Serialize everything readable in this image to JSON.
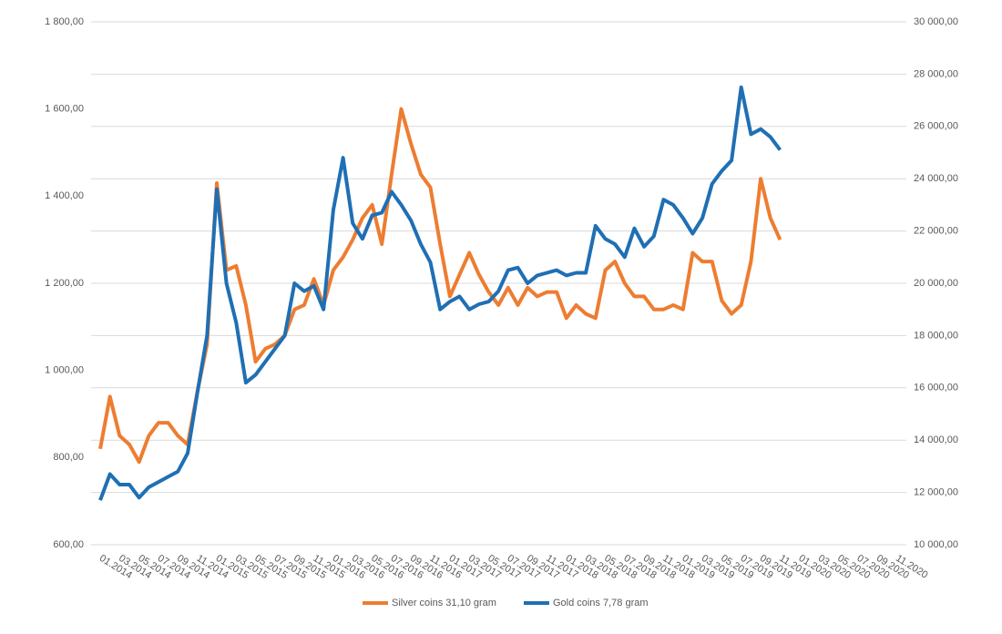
{
  "chart_data": {
    "type": "line",
    "categories": [
      "01.2014",
      null,
      "03.2014",
      null,
      "05.2014",
      null,
      "07.2014",
      null,
      "09.2014",
      null,
      "11.2014",
      null,
      "01.2015",
      null,
      "03.2015",
      null,
      "05.2015",
      null,
      "07.2015",
      null,
      "09.2015",
      null,
      "11.2015",
      null,
      "01.2016",
      null,
      "03.2016",
      null,
      "05.2016",
      null,
      "07.2016",
      null,
      "09.2016",
      null,
      "11.2016",
      null,
      "01.2017",
      null,
      "03.2017",
      null,
      "05.2017",
      null,
      "07.2017",
      null,
      "09.2017",
      null,
      "11.2017",
      null,
      "01.2018",
      null,
      "03.2018",
      null,
      "05.2018",
      null,
      "07.2018",
      null,
      "09.2018",
      null,
      "11.2018",
      null,
      "01.2019",
      null,
      "03.2019",
      null,
      "05.2019",
      null,
      "07.2019",
      null,
      "09.2019",
      null,
      "11.2019",
      null,
      "01.2020",
      null,
      "03.2020",
      null,
      "05.2020",
      null,
      "07.2020",
      null,
      "09.2020",
      null,
      "11.2020",
      null
    ],
    "series": [
      {
        "name": "Silver coins 31,10 gram",
        "color": "#ed7d31",
        "axis": "y",
        "values": [
          820,
          940,
          850,
          830,
          790,
          850,
          880,
          880,
          850,
          830,
          950,
          1060,
          1430,
          1230,
          1240,
          1150,
          1020,
          1050,
          1060,
          1080,
          1140,
          1150,
          1210,
          1150,
          1230,
          1260,
          1300,
          1350,
          1380,
          1290,
          1450,
          1600,
          1520,
          1450,
          1420,
          1290,
          1170,
          1220,
          1270,
          1220,
          1180,
          1150,
          1190,
          1150,
          1190,
          1170,
          1180,
          1180,
          1120,
          1150,
          1130,
          1120,
          1230,
          1250,
          1200,
          1170,
          1170,
          1140,
          1140,
          1150,
          1140,
          1270,
          1250,
          1250,
          1160,
          1130,
          1150,
          1250,
          1440,
          1350,
          1300,
          null,
          null,
          null,
          null,
          null,
          null,
          null,
          null,
          null,
          null,
          null,
          null,
          null
        ]
      },
      {
        "name": "Gold coins 7,78 gram",
        "color": "#1f6fb4",
        "axis": "y2",
        "values": [
          11700,
          12700,
          12300,
          12300,
          11800,
          12200,
          12400,
          12600,
          12800,
          13500,
          15800,
          18000,
          23600,
          20000,
          18500,
          16200,
          16500,
          17000,
          17500,
          18000,
          20000,
          19700,
          19900,
          19000,
          22800,
          24800,
          22300,
          21700,
          22600,
          22700,
          23500,
          23000,
          22400,
          21500,
          20800,
          19000,
          19300,
          19500,
          19000,
          19200,
          19300,
          19700,
          20500,
          20600,
          20000,
          20300,
          20400,
          20500,
          20300,
          20400,
          20400,
          22200,
          21700,
          21500,
          21000,
          22100,
          21400,
          21800,
          23200,
          23000,
          22500,
          21900,
          22500,
          23800,
          24300,
          24700,
          27500,
          25700,
          25900,
          25600,
          25100,
          null,
          null,
          null,
          null,
          null,
          null,
          null,
          null,
          null,
          null,
          null,
          null,
          null
        ]
      }
    ],
    "ylim": [
      600,
      1800
    ],
    "yticks": [
      {
        "value": 600,
        "label": "600,00"
      },
      {
        "value": 800,
        "label": "800,00"
      },
      {
        "value": 1000,
        "label": "1 000,00"
      },
      {
        "value": 1200,
        "label": "1 200,00"
      },
      {
        "value": 1400,
        "label": "1 400,00"
      },
      {
        "value": 1600,
        "label": "1 600,00"
      },
      {
        "value": 1800,
        "label": "1 800,00"
      }
    ],
    "y2lim": [
      10000,
      30000
    ],
    "y2ticks": [
      {
        "value": 10000,
        "label": "10 000,00"
      },
      {
        "value": 12000,
        "label": "12 000,00"
      },
      {
        "value": 14000,
        "label": "14 000,00"
      },
      {
        "value": 16000,
        "label": "16 000,00"
      },
      {
        "value": 18000,
        "label": "18 000,00"
      },
      {
        "value": 20000,
        "label": "20 000,00"
      },
      {
        "value": 22000,
        "label": "22 000,00"
      },
      {
        "value": 24000,
        "label": "24 000,00"
      },
      {
        "value": 26000,
        "label": "26 000,00"
      },
      {
        "value": 28000,
        "label": "28 000,00"
      },
      {
        "value": 30000,
        "label": "30 000,00"
      }
    ],
    "grid": true,
    "legend": "bottom"
  }
}
